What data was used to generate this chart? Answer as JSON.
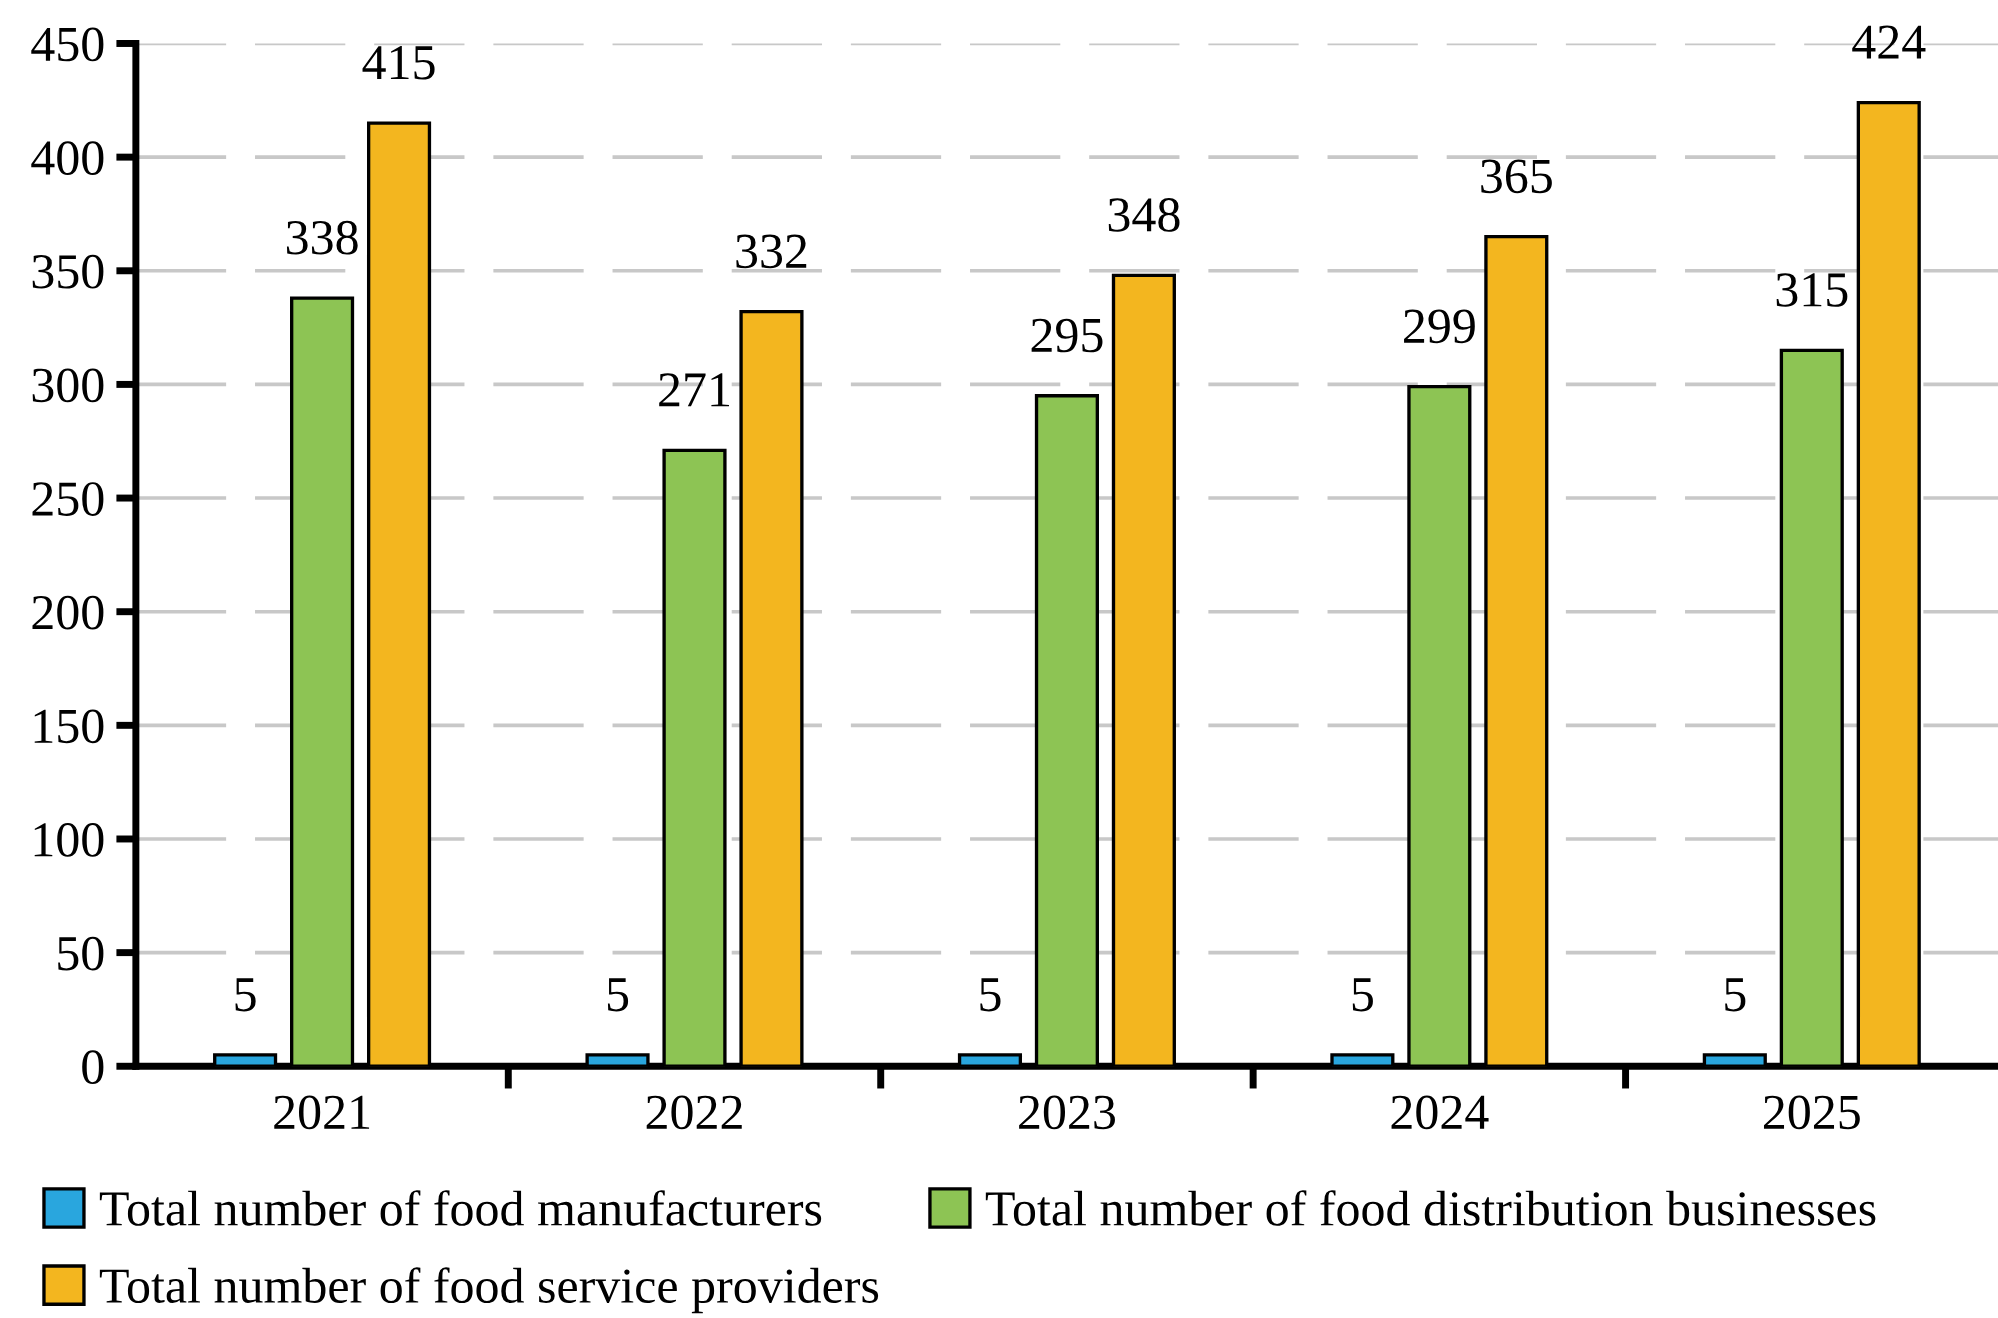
{
  "chart_data": {
    "type": "bar",
    "categories": [
      "2021",
      "2022",
      "2023",
      "2024",
      "2025"
    ],
    "series": [
      {
        "name": "Total number of food manufacturers",
        "color": "#29a6de",
        "values": [
          5,
          5,
          5,
          5,
          5
        ]
      },
      {
        "name": "Total number of food distribution businesses",
        "color": "#8dc454",
        "values": [
          338,
          271,
          295,
          299,
          315
        ]
      },
      {
        "name": "Total number of food service providers",
        "color": "#f3b61f",
        "values": [
          415,
          332,
          348,
          365,
          424
        ]
      }
    ],
    "ylim": [
      0,
      450
    ],
    "yticks": [
      0,
      50,
      100,
      150,
      200,
      250,
      300,
      350,
      400,
      450
    ],
    "grid": "y",
    "legend": "bottom",
    "data_labels": true
  }
}
